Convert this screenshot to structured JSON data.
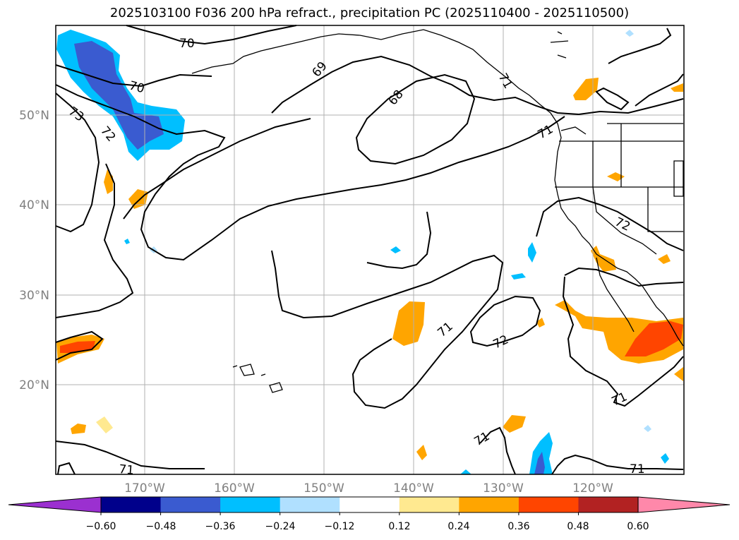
{
  "title": "2025103100 F036 200 hPa refract., precipitation PC (2025110400 - 2025110500)",
  "lat_labels": [
    "50°N",
    "40°N",
    "30°N",
    "20°N"
  ],
  "lon_labels": [
    "170°W",
    "160°W",
    "150°W",
    "140°W",
    "130°W",
    "120°W"
  ],
  "contour_labels": [
    "70",
    "69",
    "68",
    "70",
    "73",
    "72",
    "71",
    "72",
    "71",
    "72",
    "71",
    "71",
    "71",
    "71",
    "71"
  ],
  "colorbar": {
    "tick_labels": [
      "−0.60",
      "−0.48",
      "−0.36",
      "−0.24",
      "−0.12",
      "0.12",
      "0.24",
      "0.36",
      "0.48",
      "0.60"
    ],
    "colors": [
      "#9b30d0",
      "#00008b",
      "#3a5bd0",
      "#00bfff",
      "#b0e0ff",
      "#ffffff",
      "#ffe990",
      "#ffa500",
      "#ff4500",
      "#b22222",
      "#ff88aa"
    ]
  },
  "colors": {
    "grid": "#b0b0b0",
    "contour": "#000000",
    "coast": "#000000",
    "tick_text": "#808080"
  }
}
